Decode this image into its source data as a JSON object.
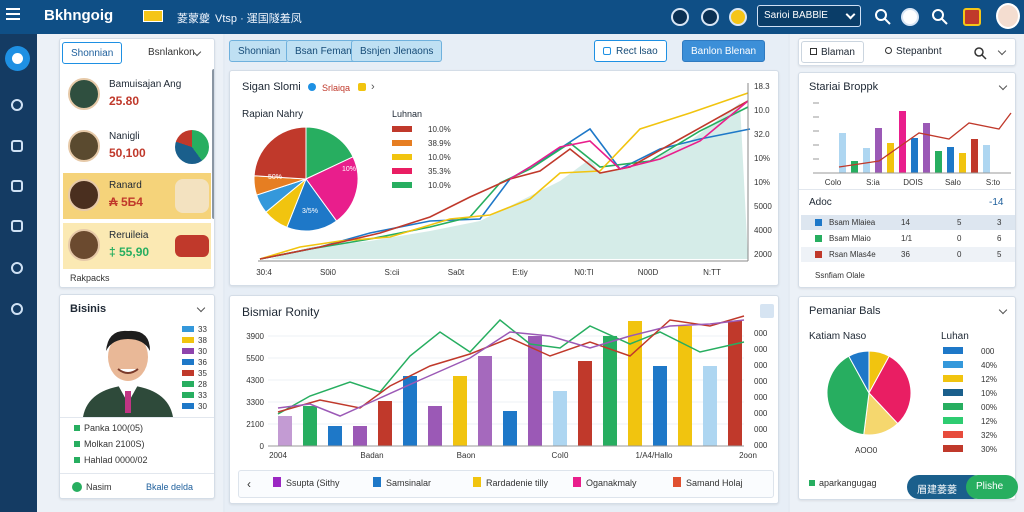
{
  "app": {
    "brand": "Bkhngoig",
    "nav_primary": "菱蒙夔",
    "nav_secondary": "Vtsp · 運国隧羞凤"
  },
  "top": {
    "select_label": "Sarioi BABBlE",
    "icons": [
      "sun-icon",
      "om-icon",
      "flag-icon",
      "search-icon",
      "record-icon",
      "search-icon-2",
      "crest-icon"
    ]
  },
  "colors": {
    "accent": "#1e90e3",
    "topbar": "#0f4f86",
    "rail": "#143b63",
    "red": "#c0392b",
    "green": "#27ae60"
  },
  "left": {
    "tabs": [
      "Shonnian",
      "Bsnlankon"
    ],
    "contacts": [
      {
        "name": "Bamuisajan Ang",
        "value": "25.80",
        "thumb_color": "#2f4f3f"
      },
      {
        "name": "Nanigli",
        "value": "50,100",
        "thumb_color": "#1a5f8c"
      },
      {
        "name": "Ranard",
        "value": "₳ 5Б4",
        "thumb_color": "#e5c16a"
      },
      {
        "name": "Reruileia",
        "value": "‡ 55,90",
        "thumb_color": "#3b5ca6"
      }
    ],
    "footer": "Rakpacks",
    "profile": {
      "title": "Bisinis",
      "bars": [
        {
          "v": "33"
        },
        {
          "v": "38"
        },
        {
          "v": "30"
        },
        {
          "v": "36"
        },
        {
          "v": "35"
        },
        {
          "v": "28"
        },
        {
          "v": "33"
        },
        {
          "v": "30"
        }
      ],
      "items": [
        "Panka 100(05)",
        "Molkan 2100S)",
        "Hahlad 0000/02"
      ],
      "footer_left": "Nasim",
      "footer_right": "Bkale delda"
    }
  },
  "center": {
    "tabs": [
      "Shonnian",
      "Bsan Feman",
      "Bsnjen Jlenaons"
    ],
    "btn_primary": "Rect lsao",
    "btn_secondary": "Banlon Blenan",
    "top_chart": {
      "title": "Sigan Slomi",
      "subtitle": "Srlaiqa",
      "pie_title": "Rapian Nahry",
      "legend_title": "Luhnan",
      "legend": [
        {
          "label": "10.0%",
          "color": "#c0392b"
        },
        {
          "label": "38.9%",
          "color": "#e67e22"
        },
        {
          "label": "10.0%",
          "color": "#f1c40f"
        },
        {
          "label": "35.3%",
          "color": "#e91e63"
        },
        {
          "label": "10.0%",
          "color": "#27ae60"
        }
      ],
      "pie_labels": [
        "50%",
        "10%",
        "3/5%"
      ],
      "x_ticks": [
        "30:4",
        "S0i0",
        "S:cii",
        "Sa0t",
        "E:tiy",
        "N0:TI",
        "N00D",
        "N:TT"
      ],
      "y_ticks": [
        "18.3",
        "10.0",
        "32.0",
        "10%",
        "10%",
        "5000",
        "4000",
        "2000"
      ]
    },
    "bottom_chart": {
      "title": "Bismiar Ronity",
      "y_ticks": [
        "3900",
        "5500",
        "4300",
        "3300",
        "2100",
        "0"
      ],
      "y_ticks_right": [
        "000",
        "000",
        "000",
        "000",
        "000",
        "000",
        "000",
        "000"
      ],
      "x_ticks": [
        "2004",
        "Badan",
        "Baon",
        "CoI0",
        "1/A4/Hallo",
        "2oon"
      ],
      "legend": [
        {
          "label": "Ssupta (Sithy",
          "color": "#9b27c3"
        },
        {
          "label": "Samsinalar",
          "color": "#1e78c8"
        },
        {
          "label": "Rardadenie tilly",
          "color": "#f1c40f"
        },
        {
          "label": "Oganakmaly",
          "color": "#e91e8c"
        },
        {
          "label": "Samand Holaj",
          "color": "#e05030"
        }
      ]
    }
  },
  "right": {
    "tabs": [
      "Blaman",
      "Stepanbnt"
    ],
    "bar_panel": {
      "title": "Stariai Broppk",
      "x_ticks": [
        "Colo",
        "S:ia",
        "DOIS",
        "Salo",
        "S:to"
      ],
      "table_title": "Adoc",
      "table_total": "-14",
      "rows": [
        {
          "name": "Bsam Mlaiea",
          "a": "14",
          "b": "5",
          "c": "3",
          "color": "#1e78c8"
        },
        {
          "name": "Bsam Mlaio",
          "a": "1/1",
          "b": "0",
          "c": "6",
          "color": "#27ae60"
        },
        {
          "name": "Rsan Mlas4e",
          "a": "36",
          "b": "0",
          "c": "5",
          "color": "#c0392b"
        }
      ],
      "footer": "Ssnfiam Olale"
    },
    "pie_panel": {
      "title": "Pemaniar Bals",
      "pie_title": "Katiam Naso",
      "legend_title": "Luhan",
      "legend": [
        {
          "label": "000",
          "color": "#1e78c8"
        },
        {
          "label": "40%",
          "color": "#3498db"
        },
        {
          "label": "12%",
          "color": "#f1c40f"
        },
        {
          "label": "10%",
          "color": "#1a5f8c"
        },
        {
          "label": "00%",
          "color": "#27ae60"
        },
        {
          "label": "12%",
          "color": "#2ecc71"
        },
        {
          "label": "32%",
          "color": "#e74c3c"
        },
        {
          "label": "30%",
          "color": "#c0392b"
        }
      ],
      "pie_label": "AOO0",
      "footer": "aparkangugag",
      "btn_blue": "眉建蒌蒌",
      "btn_green": "Plishe"
    }
  }
}
